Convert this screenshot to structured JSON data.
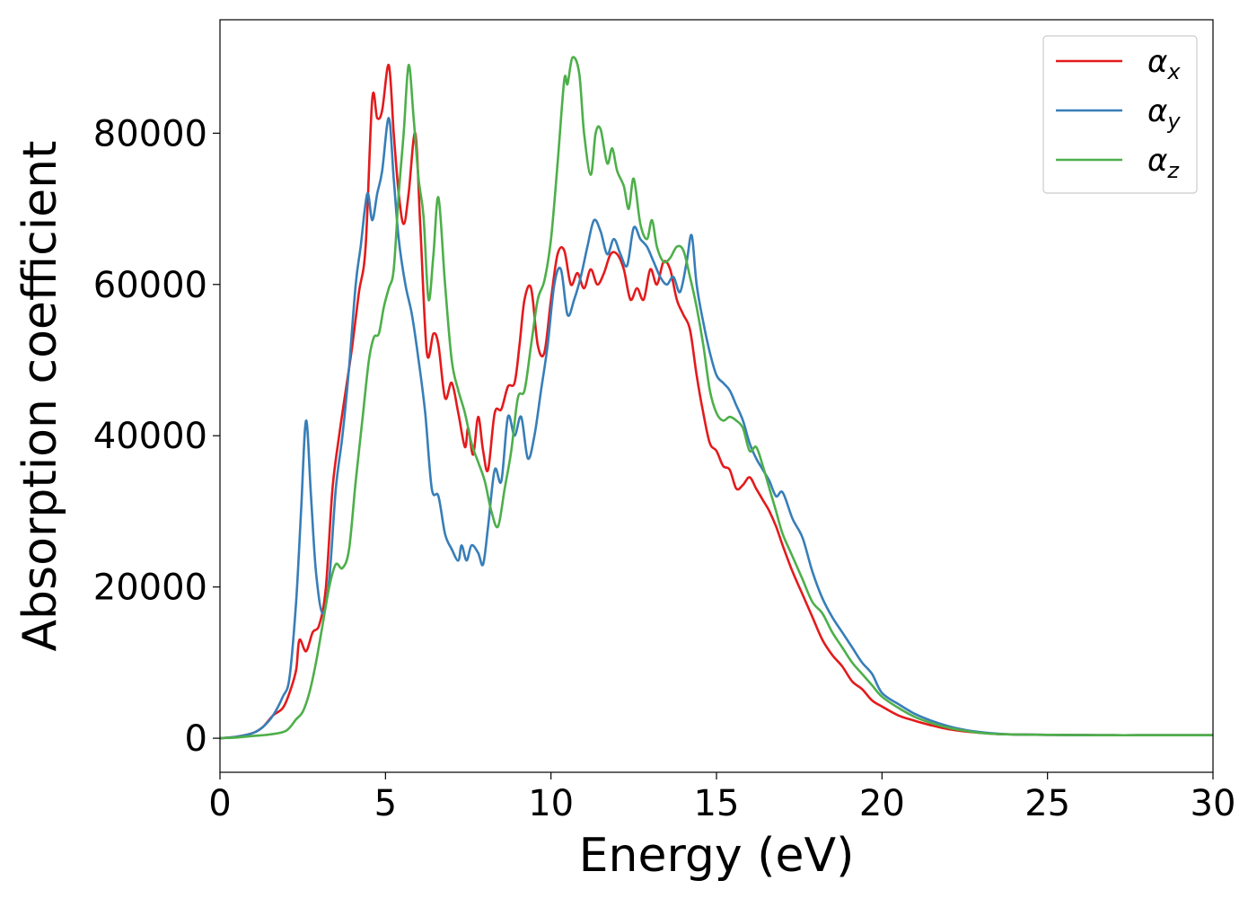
{
  "chart_data": {
    "type": "line",
    "xlabel": "Energy (eV)",
    "ylabel": "Absorption coefficient",
    "xlim": [
      0,
      30
    ],
    "ylim": [
      -4500,
      95000
    ],
    "xticks": [
      0,
      5,
      10,
      15,
      20,
      25,
      30
    ],
    "xtick_labels": [
      "0",
      "5",
      "10",
      "15",
      "20",
      "25",
      "30"
    ],
    "yticks": [
      0,
      20000,
      40000,
      60000,
      80000
    ],
    "ytick_labels": [
      "0",
      "20000",
      "40000",
      "60000",
      "80000"
    ],
    "grid": false,
    "legend_position": "top-right",
    "legend": [
      {
        "symbol": "α",
        "sub": "x",
        "color": "#e41a1c"
      },
      {
        "symbol": "α",
        "sub": "y",
        "color": "#377eb8"
      },
      {
        "symbol": "α",
        "sub": "z",
        "color": "#4daf4a"
      }
    ],
    "series": [
      {
        "name": "αx",
        "color": "#e41a1c",
        "x": [
          0,
          0.5,
          1.0,
          1.3,
          1.6,
          1.9,
          2.1,
          2.3,
          2.4,
          2.6,
          2.8,
          3.0,
          3.2,
          3.4,
          3.6,
          3.8,
          4.0,
          4.2,
          4.4,
          4.6,
          4.75,
          4.9,
          5.1,
          5.25,
          5.4,
          5.55,
          5.7,
          5.9,
          6.05,
          6.25,
          6.45,
          6.6,
          6.8,
          7.0,
          7.2,
          7.4,
          7.5,
          7.65,
          7.8,
          7.95,
          8.1,
          8.3,
          8.5,
          8.7,
          8.9,
          9.05,
          9.2,
          9.4,
          9.6,
          9.8,
          10.0,
          10.2,
          10.4,
          10.6,
          10.8,
          11.0,
          11.2,
          11.4,
          11.6,
          11.8,
          12.0,
          12.2,
          12.4,
          12.6,
          12.8,
          13.0,
          13.2,
          13.4,
          13.6,
          13.8,
          14.0,
          14.2,
          14.4,
          14.6,
          14.8,
          15.0,
          15.2,
          15.4,
          15.6,
          15.8,
          16.0,
          16.2,
          16.4,
          16.6,
          16.8,
          17.0,
          17.3,
          17.6,
          17.9,
          18.2,
          18.5,
          18.8,
          19.1,
          19.4,
          19.7,
          20.0,
          20.5,
          21.0,
          21.5,
          22.0,
          22.5,
          23.0,
          23.5,
          24.0,
          25.0,
          26.0,
          27.0,
          28.0,
          29.0,
          30.0
        ],
        "y": [
          0,
          200,
          700,
          1500,
          3000,
          4000,
          6000,
          9000,
          13000,
          11500,
          14000,
          15000,
          20000,
          33000,
          40000,
          46000,
          52000,
          59000,
          65000,
          84500,
          82000,
          83000,
          89000,
          80000,
          72000,
          68000,
          72000,
          80000,
          68000,
          51000,
          53500,
          52000,
          45000,
          47000,
          43000,
          38500,
          41000,
          37500,
          42500,
          38000,
          35500,
          43000,
          43500,
          46500,
          47000,
          52000,
          58000,
          59500,
          52000,
          51000,
          58000,
          64000,
          64500,
          60000,
          61500,
          59500,
          62000,
          60000,
          61500,
          64000,
          64000,
          62000,
          58000,
          59500,
          58000,
          62000,
          60000,
          63000,
          62000,
          58000,
          56000,
          54000,
          48000,
          43000,
          39000,
          38000,
          36000,
          35500,
          33000,
          33500,
          34500,
          33000,
          31500,
          30000,
          28000,
          25500,
          22000,
          19000,
          16000,
          13000,
          11000,
          9500,
          7500,
          6500,
          5000,
          4200,
          3000,
          2300,
          1700,
          1200,
          900,
          700,
          550,
          500,
          450,
          420,
          400,
          400,
          400,
          400
        ]
      },
      {
        "name": "αy",
        "color": "#377eb8",
        "x": [
          0,
          0.5,
          1.0,
          1.3,
          1.6,
          1.9,
          2.1,
          2.3,
          2.45,
          2.6,
          2.75,
          2.9,
          3.1,
          3.3,
          3.5,
          3.7,
          3.9,
          4.1,
          4.25,
          4.45,
          4.6,
          4.75,
          4.9,
          5.1,
          5.25,
          5.4,
          5.6,
          5.8,
          6.0,
          6.2,
          6.4,
          6.6,
          6.8,
          7.0,
          7.2,
          7.3,
          7.45,
          7.6,
          7.8,
          7.95,
          8.1,
          8.3,
          8.5,
          8.7,
          8.9,
          9.1,
          9.3,
          9.5,
          9.7,
          9.9,
          10.1,
          10.3,
          10.5,
          10.7,
          10.9,
          11.1,
          11.3,
          11.5,
          11.7,
          11.9,
          12.1,
          12.3,
          12.5,
          12.7,
          12.9,
          13.1,
          13.3,
          13.5,
          13.7,
          13.9,
          14.1,
          14.25,
          14.4,
          14.6,
          14.8,
          15.0,
          15.2,
          15.4,
          15.6,
          15.8,
          16.0,
          16.2,
          16.4,
          16.6,
          16.8,
          17.0,
          17.3,
          17.6,
          17.9,
          18.2,
          18.5,
          18.8,
          19.1,
          19.4,
          19.7,
          20.0,
          20.5,
          21.0,
          21.5,
          22.0,
          22.5,
          23.0,
          23.5,
          24.0,
          25.0,
          26.0,
          27.0,
          28.0,
          29.0,
          30.0
        ],
        "y": [
          0,
          200,
          700,
          1500,
          3000,
          5500,
          8000,
          18000,
          30000,
          42000,
          32000,
          22000,
          16500,
          21000,
          33000,
          40000,
          49000,
          60000,
          65000,
          72000,
          68500,
          72000,
          75000,
          82000,
          74000,
          66000,
          60000,
          56000,
          50000,
          43000,
          33000,
          32000,
          27000,
          25000,
          23500,
          25500,
          23500,
          25500,
          24500,
          23000,
          28000,
          35500,
          34000,
          42500,
          40000,
          42500,
          37000,
          40000,
          46000,
          52000,
          60000,
          62000,
          56000,
          58000,
          61000,
          65000,
          68500,
          67000,
          64000,
          66000,
          64000,
          62500,
          67500,
          66000,
          65000,
          63000,
          61000,
          60000,
          61000,
          59000,
          63000,
          66500,
          60000,
          55000,
          51000,
          48000,
          47000,
          46000,
          44000,
          42000,
          39000,
          37000,
          35500,
          34000,
          32000,
          32500,
          29000,
          26500,
          22000,
          18500,
          16000,
          14000,
          12000,
          10000,
          8500,
          6000,
          4500,
          3200,
          2300,
          1600,
          1100,
          800,
          600,
          500,
          450,
          420,
          400,
          400,
          400,
          400
        ]
      },
      {
        "name": "αz",
        "color": "#4daf4a",
        "x": [
          0,
          0.5,
          1.0,
          1.5,
          2.0,
          2.3,
          2.5,
          2.7,
          2.9,
          3.1,
          3.3,
          3.5,
          3.7,
          3.9,
          4.1,
          4.3,
          4.5,
          4.65,
          4.8,
          4.95,
          5.1,
          5.25,
          5.4,
          5.55,
          5.7,
          5.85,
          6.0,
          6.15,
          6.3,
          6.45,
          6.6,
          6.8,
          7.0,
          7.2,
          7.4,
          7.6,
          7.8,
          8.0,
          8.2,
          8.4,
          8.6,
          8.8,
          9.0,
          9.2,
          9.4,
          9.6,
          9.8,
          10.0,
          10.2,
          10.4,
          10.5,
          10.65,
          10.85,
          11.0,
          11.2,
          11.35,
          11.5,
          11.7,
          11.85,
          12.0,
          12.2,
          12.35,
          12.5,
          12.7,
          12.9,
          13.05,
          13.2,
          13.4,
          13.6,
          13.8,
          14.0,
          14.2,
          14.4,
          14.6,
          14.8,
          15.0,
          15.2,
          15.4,
          15.6,
          15.8,
          16.0,
          16.2,
          16.4,
          16.6,
          16.8,
          17.0,
          17.3,
          17.6,
          17.9,
          18.2,
          18.5,
          18.8,
          19.1,
          19.4,
          19.7,
          20.0,
          20.5,
          21.0,
          21.5,
          22.0,
          22.5,
          23.0,
          23.5,
          24.0,
          25.0,
          26.0,
          27.0,
          28.0,
          29.0,
          30.0
        ],
        "y": [
          0,
          100,
          300,
          500,
          1000,
          2500,
          3500,
          6000,
          10000,
          15000,
          20000,
          23000,
          22500,
          25000,
          34000,
          42000,
          50000,
          53000,
          53500,
          57000,
          59500,
          62000,
          72000,
          80000,
          89000,
          82000,
          74000,
          69000,
          58000,
          64000,
          71500,
          60000,
          50000,
          46000,
          43000,
          39000,
          36500,
          34000,
          30000,
          28000,
          33000,
          38000,
          45000,
          46000,
          52000,
          58000,
          60500,
          66000,
          76000,
          87000,
          86500,
          90000,
          88000,
          80000,
          74500,
          80000,
          80500,
          76000,
          78000,
          75000,
          73000,
          70000,
          74000,
          68000,
          66000,
          68500,
          65000,
          63000,
          63500,
          65000,
          64500,
          61000,
          57000,
          52000,
          46000,
          43000,
          42000,
          42500,
          42000,
          41000,
          38000,
          38500,
          36000,
          33000,
          30000,
          27000,
          24000,
          21000,
          18000,
          16500,
          14000,
          12000,
          10000,
          8500,
          7000,
          5500,
          4000,
          2800,
          2000,
          1400,
          1000,
          700,
          550,
          500,
          450,
          420,
          400,
          400,
          400,
          400
        ]
      }
    ]
  }
}
